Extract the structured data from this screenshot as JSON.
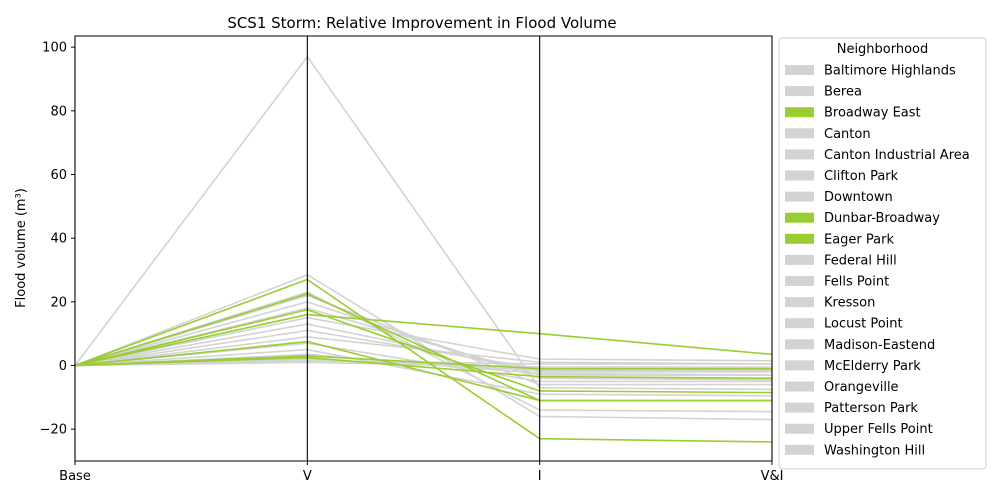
{
  "chart_data": {
    "type": "line",
    "title": "SCS1 Storm: Relative Improvement in Flood Volume",
    "xlabel": "",
    "ylabel": "Flood volume (m³)",
    "categories": [
      "Base",
      "V",
      "I",
      "V&I"
    ],
    "ylim": [
      -30,
      103.5
    ],
    "yticks": [
      -20,
      0,
      20,
      40,
      60,
      80,
      100
    ],
    "grid": false,
    "legend": {
      "title": "Neighborhood",
      "placement": "outside-right"
    },
    "colors": {
      "highlight": "#9acd32",
      "other": "#d3d3d3",
      "axis": "#000000"
    },
    "series": [
      {
        "name": "Baltimore Highlands",
        "values": [
          0,
          97,
          -7,
          -7.5
        ],
        "highlight": false
      },
      {
        "name": "Berea",
        "values": [
          0,
          28.5,
          -16,
          -17
        ],
        "highlight": false
      },
      {
        "name": "Broadway East",
        "values": [
          0,
          27,
          -23,
          -24
        ],
        "highlight": true
      },
      {
        "name": "Canton",
        "values": [
          0,
          23,
          -14,
          -14.5
        ],
        "highlight": false
      },
      {
        "name": "Canton Industrial Area",
        "values": [
          0,
          22,
          -6,
          -6
        ],
        "highlight": false
      },
      {
        "name": "Clifton Park",
        "values": [
          0,
          20,
          -4,
          -4.5
        ],
        "highlight": false
      },
      {
        "name": "Downtown",
        "values": [
          0,
          18,
          -3,
          -3
        ],
        "highlight": false
      },
      {
        "name": "Dunbar-Broadway",
        "values": [
          0,
          22.5,
          -11,
          -11
        ],
        "highlight": true
      },
      {
        "name": "Eager Park",
        "values": [
          0,
          16,
          10,
          3.5
        ],
        "highlight": true
      },
      {
        "name": "Federal Hill",
        "values": [
          0,
          15,
          2,
          1.5
        ],
        "highlight": false
      },
      {
        "name": "Fells Point",
        "values": [
          0,
          13,
          -2,
          -2
        ],
        "highlight": false
      },
      {
        "name": "Kresson",
        "values": [
          0,
          11,
          -1,
          -1
        ],
        "highlight": false
      },
      {
        "name": "Locust Point",
        "values": [
          0,
          9,
          1,
          0.5
        ],
        "highlight": false
      },
      {
        "name": "Madison-Eastend",
        "values": [
          0,
          7,
          -5,
          -5
        ],
        "highlight": false
      },
      {
        "name": "McElderry Park",
        "values": [
          0,
          5,
          -9,
          -9.5
        ],
        "highlight": false
      },
      {
        "name": "Orangeville",
        "values": [
          0,
          3.5,
          -2.5,
          -3
        ],
        "highlight": false
      },
      {
        "name": "Patterson Park",
        "values": [
          0,
          2,
          -1.5,
          -1.5
        ],
        "highlight": false
      },
      {
        "name": "Upper Fells Point",
        "values": [
          0,
          1.5,
          0.5,
          0.5
        ],
        "highlight": false
      },
      {
        "name": "Washington Hill",
        "values": [
          0,
          1,
          -0.5,
          -0.5
        ],
        "highlight": false
      },
      {
        "name": "",
        "values": [
          0,
          17.5,
          -8,
          -8.5
        ],
        "highlight": true
      },
      {
        "name": "",
        "values": [
          0,
          7.5,
          -11,
          -11
        ],
        "highlight": true
      },
      {
        "name": "",
        "values": [
          0,
          3,
          -1,
          -1
        ],
        "highlight": true
      },
      {
        "name": "",
        "values": [
          0,
          2.5,
          -3.5,
          -4
        ],
        "highlight": true
      }
    ]
  }
}
